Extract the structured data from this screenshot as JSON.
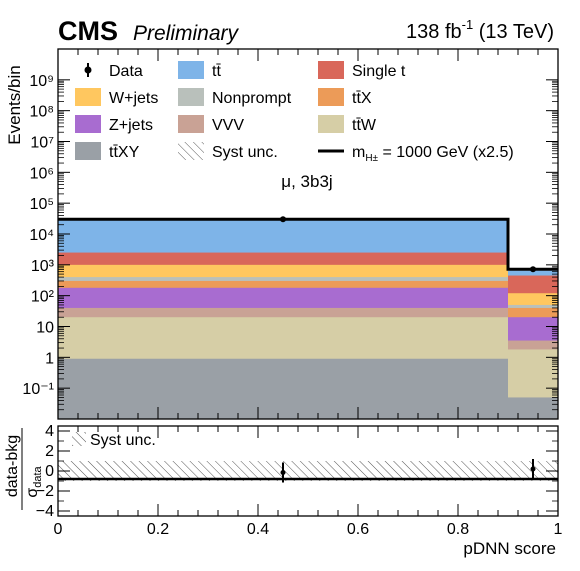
{
  "header": {
    "experiment": "CMS",
    "status": "Preliminary",
    "lumi_prefix": "138 fb",
    "lumi_exp": "-1",
    "lumi_suffix": " (13 TeV)"
  },
  "colors": {
    "data": "#000000",
    "ttbar": "#7eb4e8",
    "single_t": "#d9675a",
    "wjets": "#ffc75f",
    "nonprompt": "#b9c0bb",
    "ttx": "#ec9b58",
    "zjets": "#a86cd0",
    "vvv": "#c9a295",
    "ttw": "#d6cea6",
    "ttxy": "#9aa0a6",
    "signal": "#000000"
  },
  "chart_data": [
    {
      "type": "bar",
      "stacked": true,
      "log_y": true,
      "ylabel": "Events/bin",
      "xlim": [
        0,
        1
      ],
      "ylim": [
        0.01,
        10000000000
      ],
      "category_label": "μ, 3b3j",
      "bin_edges": [
        0,
        0.9,
        1.0
      ],
      "y_tick_labels": [
        "10⁻¹",
        "1",
        "10",
        "10²",
        "10³",
        "10⁴",
        "10⁵",
        "10⁶",
        "10⁷",
        "10⁸",
        "10⁹"
      ],
      "legend": [
        {
          "label": "Data",
          "key": "data",
          "kind": "marker"
        },
        {
          "label": "tt̄",
          "key": "ttbar",
          "kind": "box"
        },
        {
          "label": "Single t",
          "key": "single_t",
          "kind": "box"
        },
        {
          "label": "W+jets",
          "key": "wjets",
          "kind": "box"
        },
        {
          "label": "Nonprompt",
          "key": "nonprompt",
          "kind": "box"
        },
        {
          "label": "tt̄X",
          "key": "ttx",
          "kind": "box"
        },
        {
          "label": "Z+jets",
          "key": "zjets",
          "kind": "box"
        },
        {
          "label": "VVV",
          "key": "vvv",
          "kind": "box"
        },
        {
          "label": "tt̄W",
          "key": "ttw",
          "kind": "box"
        },
        {
          "label": "tt̄XY",
          "key": "ttxy",
          "kind": "box"
        },
        {
          "label": "Syst unc.",
          "key": "syst",
          "kind": "hatch"
        },
        {
          "label": "m",
          "sub": "H±",
          "rest": " = 1000 GeV (x2.5)",
          "key": "signal",
          "kind": "line"
        }
      ],
      "stack_order_bottom_to_top": [
        "ttxy",
        "ttw",
        "vvv",
        "zjets",
        "ttx",
        "nonprompt",
        "wjets",
        "single_t",
        "ttbar"
      ],
      "stack_tops": {
        "ttxy": [
          0.9,
          0.05
        ],
        "ttw": [
          20,
          1.8
        ],
        "vvv": [
          40,
          3.5
        ],
        "zjets": [
          180,
          20
        ],
        "ttx": [
          300,
          40
        ],
        "nonprompt": [
          400,
          50
        ],
        "wjets": [
          1000,
          120
        ],
        "single_t": [
          2500,
          450
        ],
        "ttbar": [
          28000,
          650
        ]
      },
      "signal_values": [
        30000,
        720
      ],
      "data_points": [
        {
          "x": 0.45,
          "y": 30000
        },
        {
          "x": 0.95,
          "y": 720
        }
      ]
    },
    {
      "type": "scatter",
      "ylabel_num": "data-bkg",
      "ylabel_den": "σ",
      "ylabel_den_sub": "data",
      "xlabel": "pDNN score",
      "xlim": [
        0,
        1
      ],
      "ylim": [
        -4.5,
        4.5
      ],
      "y_ticks": [
        -4,
        -2,
        0,
        2,
        4
      ],
      "y_tick_labels": [
        "−4",
        "−2",
        "0",
        "2",
        "4"
      ],
      "x_ticks": [
        0,
        0.2,
        0.4,
        0.6,
        0.8,
        1
      ],
      "x_tick_labels": [
        "0",
        "0.2",
        "0.4",
        "0.6",
        "0.8",
        "1"
      ],
      "legend": [
        {
          "label": "Syst unc.",
          "key": "syst",
          "kind": "hatch"
        }
      ],
      "syst_band": [
        [
          -1.0,
          1.0
        ],
        [
          -1.0,
          1.0
        ]
      ],
      "points": [
        {
          "x": 0.45,
          "y": -0.15,
          "err": 1.0
        },
        {
          "x": 0.95,
          "y": 0.2,
          "err": 1.0
        }
      ]
    }
  ]
}
